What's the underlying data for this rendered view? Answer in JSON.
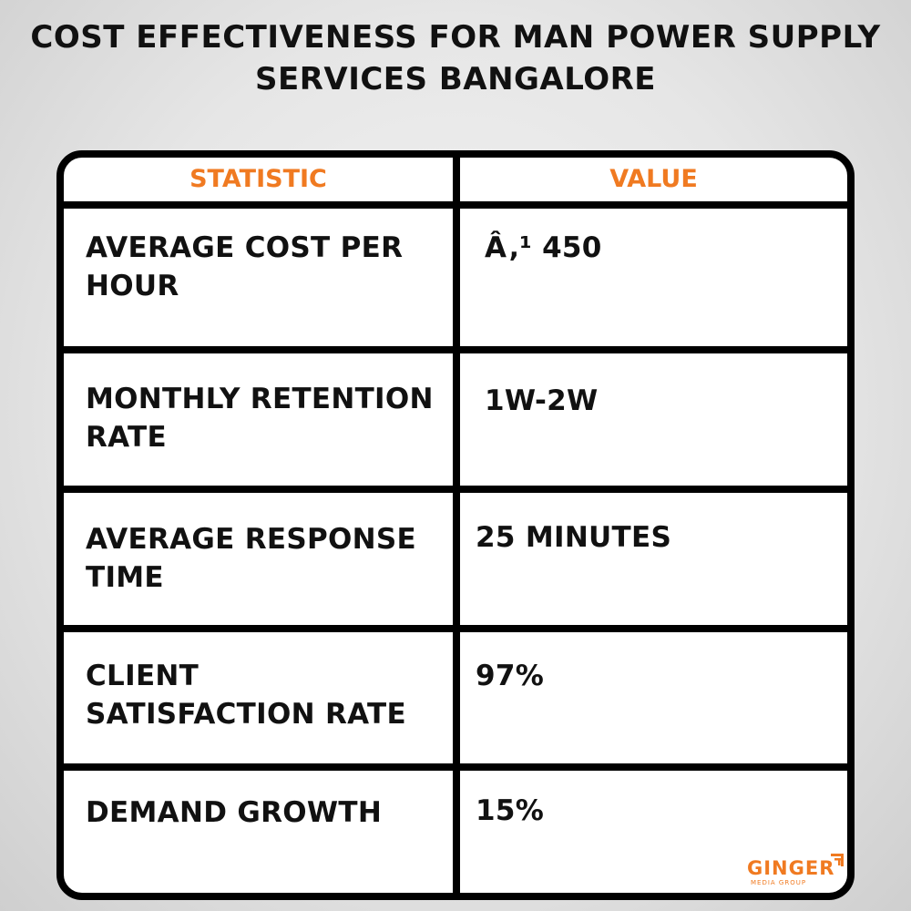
{
  "title": {
    "line1": "COST EFFECTIVENESS FOR MAN POWER SUPPLY",
    "line2": "SERVICES  BANGALORE"
  },
  "table": {
    "headers": [
      "STATISTIC",
      "VALUE"
    ],
    "rows": [
      {
        "statistic": [
          "AVERAGE COST PER",
          "HOUR"
        ],
        "value": "Â‚¹ 450"
      },
      {
        "statistic": [
          "MONTHLY RETENTION",
          "RATE"
        ],
        "value": "1W-2W"
      },
      {
        "statistic": [
          "AVERAGE RESPONSE",
          "TIME"
        ],
        "value": "25 MINUTES"
      },
      {
        "statistic": [
          "CLIENT",
          "SATISFACTION RATE"
        ],
        "value": "97%"
      },
      {
        "statistic": [
          "DEMAND GROWTH",
          ""
        ],
        "value": "15%"
      }
    ]
  },
  "logo": {
    "name": "GINGER",
    "tagline": "MEDIA GROUP",
    "color": "#f07a21"
  },
  "colors": {
    "accent": "#f07a21",
    "border": "#000000"
  }
}
